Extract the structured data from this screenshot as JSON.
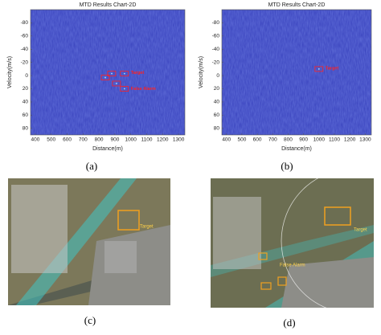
{
  "chart_data": [
    {
      "type": "heatmap",
      "title": "MTD Results Chart-2D",
      "x_label": "Distance(m)",
      "y_label": "Velocity(m/s)",
      "xlim": [
        370,
        1340
      ],
      "ylim": [
        -100,
        90
      ],
      "y_inverted": true,
      "xticks": [
        400,
        500,
        600,
        700,
        800,
        900,
        1000,
        1100,
        1200,
        1300
      ],
      "yticks": [
        -80,
        -60,
        -40,
        -20,
        0,
        20,
        40,
        60,
        80
      ],
      "series": [
        {
          "name": "Target",
          "color": "#ff2020",
          "x": [
            880,
            960
          ],
          "values": [
            -3,
            -3
          ]
        },
        {
          "name": "False Alarm",
          "color": "#ff2020",
          "x": [
            840,
            910,
            960
          ],
          "values": [
            3,
            12,
            20
          ]
        }
      ]
    },
    {
      "type": "heatmap",
      "title": "MTD Results Chart-2D",
      "x_label": "Distance(m)",
      "y_label": "Velocity(m/s)",
      "xlim": [
        370,
        1340
      ],
      "ylim": [
        -100,
        90
      ],
      "y_inverted": true,
      "xticks": [
        400,
        500,
        600,
        700,
        800,
        900,
        1000,
        1100,
        1200,
        1300
      ],
      "yticks": [
        -80,
        -60,
        -40,
        -20,
        0,
        20,
        40,
        60,
        80
      ],
      "series": [
        {
          "name": "Target",
          "color": "#ff2020",
          "x": [
            1000
          ],
          "values": [
            -10
          ]
        }
      ]
    }
  ],
  "panel_labels": [
    "(a)",
    "(b)",
    "(c)",
    "(d)"
  ],
  "photo_c": {
    "annotations": [
      "Target"
    ]
  },
  "photo_d": {
    "annotations": [
      "Target",
      "False Alarm"
    ]
  }
}
